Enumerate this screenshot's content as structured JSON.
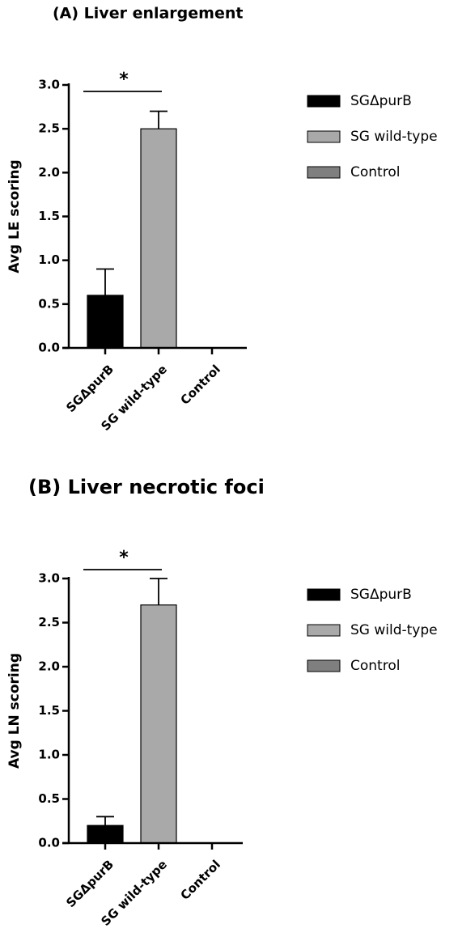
{
  "chart_data": [
    {
      "type": "bar",
      "title": "(A) Liver enlargement",
      "y_label": "Avg LE scoring",
      "categories": [
        "SGΔpurB",
        "SG wild-type",
        "Control"
      ],
      "values": [
        0.6,
        2.5,
        0
      ],
      "errors": [
        0.3,
        0.2,
        0
      ],
      "colors": [
        "#000000",
        "#a9a9a9",
        "#7f7f7f"
      ],
      "ylim": [
        0,
        3
      ],
      "yticks": [
        {
          "value": 0,
          "label": "0.0"
        },
        0.5,
        {
          "value": 1,
          "label": "1.0"
        },
        1.5,
        {
          "value": 2,
          "label": "2.0"
        },
        2.5,
        {
          "value": 3,
          "label": "3.0"
        }
      ],
      "annotation": "*",
      "legend": "right"
    },
    {
      "type": "bar",
      "title": "(B) Liver necrotic foci",
      "y_label": "Avg LN scoring",
      "categories": [
        "SGΔpurB",
        "SG wild-type",
        "Control"
      ],
      "values": [
        0.2,
        2.7,
        0
      ],
      "errors": [
        0.1,
        0.3,
        0
      ],
      "colors": [
        "#000000",
        "#a9a9a9",
        "#7f7f7f"
      ],
      "ylim": [
        0,
        3
      ],
      "yticks": [
        {
          "value": 0,
          "label": "0.0"
        },
        0.5,
        {
          "value": 1,
          "label": "1.0"
        },
        1.5,
        {
          "value": 2,
          "label": "2.0"
        },
        2.5,
        {
          "value": 3,
          "label": "3.0"
        }
      ],
      "annotation": "*",
      "legend": "right"
    }
  ]
}
